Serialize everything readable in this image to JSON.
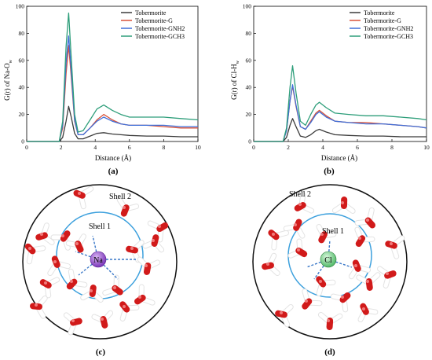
{
  "chart_data": [
    {
      "type": "line",
      "panel_label": "(a)",
      "xlabel": "Distance (Å)",
      "ylabel_main": "G(r) of Na-O",
      "ylabel_sub": "w",
      "xlim": [
        0,
        10
      ],
      "ylim": [
        0,
        100
      ],
      "xticks": [
        "0",
        "2",
        "4",
        "6",
        "8",
        "10"
      ],
      "yticks": [
        "0",
        "20",
        "40",
        "60",
        "80",
        "100"
      ],
      "legend_position": "top-right",
      "series": [
        {
          "name": "Tobermorite",
          "color": "#3a3a3a",
          "x": [
            0,
            1.9,
            2.1,
            2.3,
            2.45,
            2.6,
            2.8,
            3.0,
            3.3,
            3.7,
            4.1,
            4.5,
            5.0,
            5.5,
            6.0,
            7.0,
            8.0,
            9.0,
            10.0
          ],
          "y": [
            0,
            0,
            3,
            15,
            26,
            18,
            6,
            2,
            2,
            4,
            6,
            6.5,
            5.5,
            5,
            4.5,
            4,
            4,
            3.5,
            3.5
          ]
        },
        {
          "name": "Tobermorite-G",
          "color": "#d9533a",
          "x": [
            0,
            1.9,
            2.1,
            2.3,
            2.45,
            2.6,
            2.8,
            3.0,
            3.3,
            3.7,
            4.1,
            4.5,
            5.0,
            5.5,
            6.0,
            7.0,
            8.0,
            9.0,
            10.0
          ],
          "y": [
            0,
            0,
            10,
            50,
            71,
            48,
            15,
            5,
            5,
            10,
            16,
            20,
            16,
            13,
            12,
            12,
            11,
            10,
            10
          ]
        },
        {
          "name": "Tobermorite-GNH2",
          "color": "#3f6fd8",
          "x": [
            0,
            1.9,
            2.1,
            2.3,
            2.45,
            2.6,
            2.8,
            3.0,
            3.3,
            3.7,
            4.1,
            4.5,
            5.0,
            5.5,
            6.0,
            7.0,
            8.0,
            9.0,
            10.0
          ],
          "y": [
            0,
            0,
            12,
            58,
            78,
            52,
            16,
            5,
            5,
            10,
            15,
            18,
            15,
            13,
            12,
            12,
            12,
            11,
            11
          ]
        },
        {
          "name": "Tobermorite-GCH3",
          "color": "#2e9e7a",
          "x": [
            0,
            1.9,
            2.1,
            2.3,
            2.45,
            2.6,
            2.8,
            3.0,
            3.3,
            3.7,
            4.1,
            4.5,
            5.0,
            5.5,
            6.0,
            7.0,
            8.0,
            9.0,
            10.0
          ],
          "y": [
            0,
            0,
            15,
            70,
            95,
            62,
            20,
            7,
            8,
            16,
            24,
            27,
            23,
            20,
            18,
            18,
            18,
            17,
            16
          ]
        }
      ]
    },
    {
      "type": "line",
      "panel_label": "(b)",
      "xlabel": "Distance (Å)",
      "ylabel_main": "G(r) of Cl-H",
      "ylabel_sub": "w",
      "xlim": [
        0,
        10
      ],
      "ylim": [
        0,
        100
      ],
      "xticks": [
        "0",
        "2",
        "4",
        "6",
        "8",
        "10"
      ],
      "yticks": [
        "0",
        "20",
        "40",
        "60",
        "80",
        "100"
      ],
      "legend_position": "top-right",
      "series": [
        {
          "name": "Tobermorite",
          "color": "#3a3a3a",
          "x": [
            0,
            1.7,
            1.9,
            2.1,
            2.25,
            2.45,
            2.7,
            3.0,
            3.3,
            3.6,
            3.8,
            4.2,
            4.7,
            5.5,
            6.5,
            7.5,
            8.5,
            9.5,
            10.0
          ],
          "y": [
            0,
            0,
            3,
            12,
            17,
            11,
            4,
            3,
            5,
            8,
            9,
            7,
            5,
            4.5,
            4,
            4,
            3.5,
            3.5,
            3.5
          ]
        },
        {
          "name": "Tobermorite-G",
          "color": "#d9533a",
          "x": [
            0,
            1.7,
            1.9,
            2.1,
            2.25,
            2.45,
            2.7,
            3.0,
            3.3,
            3.6,
            3.8,
            4.2,
            4.7,
            5.5,
            6.5,
            7.5,
            8.5,
            9.5,
            10.0
          ],
          "y": [
            0,
            0,
            8,
            30,
            41,
            26,
            11,
            9,
            15,
            21,
            23,
            19,
            15,
            14,
            14,
            13,
            12,
            11,
            10
          ]
        },
        {
          "name": "Tobermorite-GNH2",
          "color": "#3f6fd8",
          "x": [
            0,
            1.7,
            1.9,
            2.1,
            2.25,
            2.45,
            2.7,
            3.0,
            3.3,
            3.6,
            3.8,
            4.2,
            4.7,
            5.5,
            6.5,
            7.5,
            8.5,
            9.5,
            10.0
          ],
          "y": [
            0,
            0,
            8,
            30,
            42,
            27,
            11,
            9,
            14,
            20,
            22,
            18,
            15,
            14,
            13,
            13,
            12,
            11,
            10
          ]
        },
        {
          "name": "Tobermorite-GCH3",
          "color": "#2e9e7a",
          "x": [
            0,
            1.7,
            1.9,
            2.1,
            2.25,
            2.45,
            2.7,
            3.0,
            3.3,
            3.6,
            3.8,
            4.2,
            4.7,
            5.5,
            6.5,
            7.5,
            8.5,
            9.5,
            10.0
          ],
          "y": [
            0,
            0,
            10,
            40,
            56,
            36,
            15,
            12,
            20,
            27,
            29,
            25,
            21,
            20,
            19,
            19,
            18,
            17,
            16
          ]
        }
      ]
    }
  ],
  "snapshots": [
    {
      "panel_label": "(c)",
      "ion": "Na",
      "ion_color": "#8e4fc8",
      "shell_inner": "Shell 1",
      "shell_outer": "Shell 2"
    },
    {
      "panel_label": "(d)",
      "ion": "Cl",
      "ion_color": "#7cd48c",
      "shell_inner": "Shell 1",
      "shell_outer": "Shell 2"
    }
  ]
}
